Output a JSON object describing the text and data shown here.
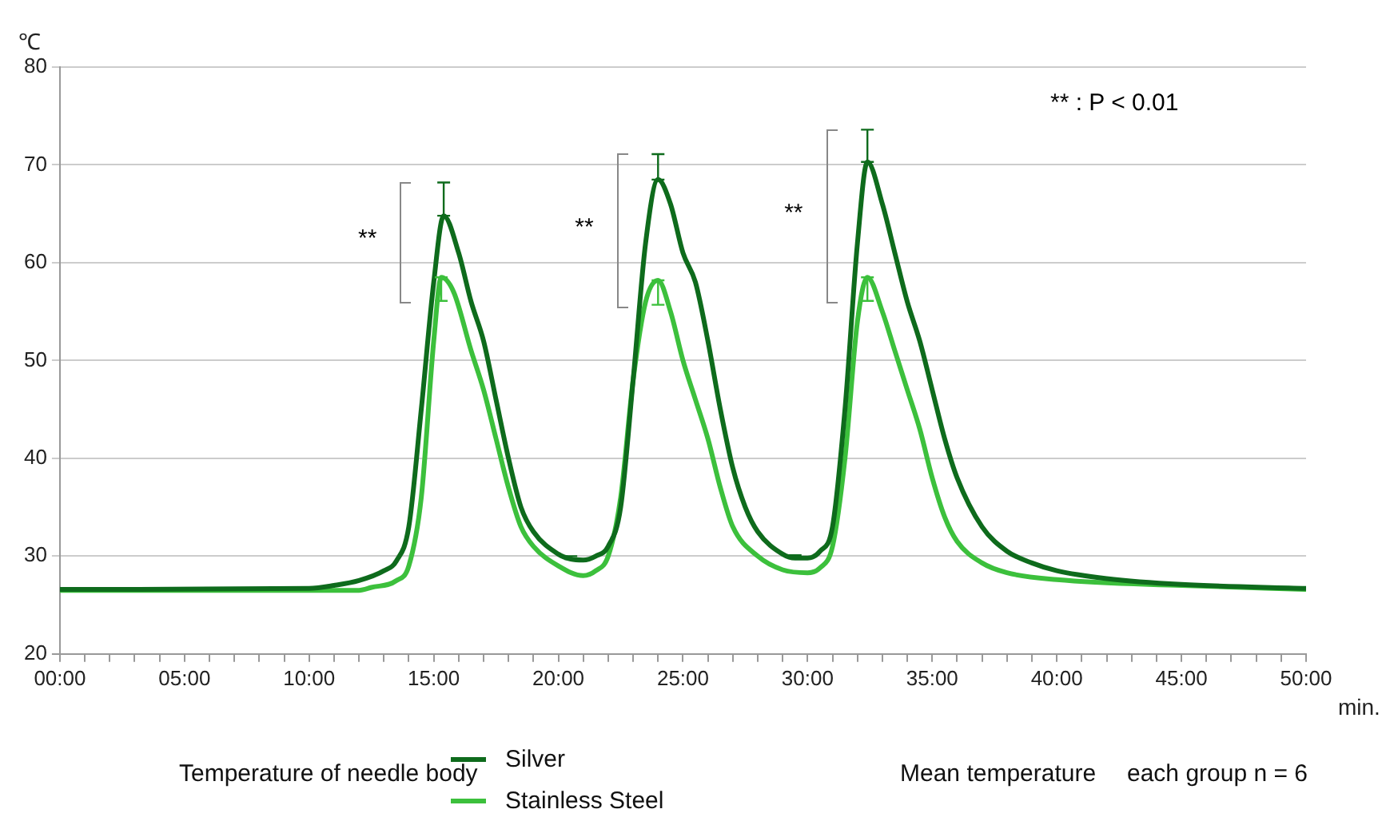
{
  "chart_data": {
    "type": "line",
    "ylabel": "℃",
    "xlabel": "min.",
    "xlim": [
      0,
      50
    ],
    "xticks": [
      {
        "value": 0,
        "label": "00:00"
      },
      {
        "value": 1,
        "label": null
      },
      {
        "value": 2,
        "label": null
      },
      {
        "value": 3,
        "label": null
      },
      {
        "value": 4,
        "label": null
      },
      {
        "value": 5,
        "label": "05:00"
      },
      {
        "value": 6,
        "label": null
      },
      {
        "value": 7,
        "label": null
      },
      {
        "value": 8,
        "label": null
      },
      {
        "value": 9,
        "label": null
      },
      {
        "value": 10,
        "label": "10:00"
      },
      {
        "value": 11,
        "label": null
      },
      {
        "value": 12,
        "label": null
      },
      {
        "value": 13,
        "label": null
      },
      {
        "value": 14,
        "label": null
      },
      {
        "value": 15,
        "label": "15:00"
      },
      {
        "value": 16,
        "label": null
      },
      {
        "value": 17,
        "label": null
      },
      {
        "value": 18,
        "label": null
      },
      {
        "value": 19,
        "label": null
      },
      {
        "value": 20,
        "label": "20:00"
      },
      {
        "value": 21,
        "label": null
      },
      {
        "value": 22,
        "label": null
      },
      {
        "value": 23,
        "label": null
      },
      {
        "value": 24,
        "label": null
      },
      {
        "value": 25,
        "label": "25:00"
      },
      {
        "value": 26,
        "label": null
      },
      {
        "value": 27,
        "label": null
      },
      {
        "value": 28,
        "label": null
      },
      {
        "value": 29,
        "label": null
      },
      {
        "value": 30,
        "label": "30:00"
      },
      {
        "value": 31,
        "label": null
      },
      {
        "value": 32,
        "label": null
      },
      {
        "value": 33,
        "label": null
      },
      {
        "value": 34,
        "label": null
      },
      {
        "value": 35,
        "label": "35:00"
      },
      {
        "value": 36,
        "label": null
      },
      {
        "value": 37,
        "label": null
      },
      {
        "value": 38,
        "label": null
      },
      {
        "value": 39,
        "label": null
      },
      {
        "value": 40,
        "label": "40:00"
      },
      {
        "value": 41,
        "label": null
      },
      {
        "value": 42,
        "label": null
      },
      {
        "value": 43,
        "label": null
      },
      {
        "value": 44,
        "label": null
      },
      {
        "value": 45,
        "label": "45:00"
      },
      {
        "value": 46,
        "label": null
      },
      {
        "value": 47,
        "label": null
      },
      {
        "value": 48,
        "label": null
      },
      {
        "value": 49,
        "label": null
      },
      {
        "value": 50,
        "label": "50:00"
      }
    ],
    "ylim": [
      20,
      80
    ],
    "yticks": [
      20,
      30,
      40,
      50,
      60,
      70,
      80
    ],
    "grid": "y",
    "legend": "bottom",
    "marker": "none",
    "line_style": "solid",
    "series": [
      {
        "name": "Silver",
        "color": "#0e6b1c",
        "x": [
          0,
          10,
          11,
          12,
          13,
          13.5,
          14,
          14.5,
          15,
          15.4,
          16,
          16.5,
          17,
          17.5,
          18,
          18.5,
          19,
          20,
          20.5,
          21,
          21.5,
          22,
          22.5,
          23,
          23.5,
          24,
          24.5,
          25,
          25.5,
          26,
          26.5,
          27,
          27.5,
          28,
          29,
          29.5,
          30,
          30.5,
          31,
          31.5,
          32,
          32.4,
          33,
          33.5,
          34,
          34.5,
          35,
          35.5,
          36,
          37,
          38,
          39,
          40,
          42,
          45,
          50
        ],
        "values": [
          26.6,
          26.7,
          27,
          27.5,
          28.5,
          29.5,
          33,
          45,
          58,
          64.8,
          61,
          56,
          52,
          46,
          40,
          35,
          32.5,
          30.2,
          29.7,
          29.6,
          30,
          31,
          35,
          48,
          62,
          68.5,
          66,
          61,
          58,
          52,
          45,
          39,
          35,
          32.5,
          30.2,
          29.8,
          29.8,
          30.5,
          33,
          45,
          62,
          70.3,
          66,
          61,
          56,
          52,
          47,
          42,
          38,
          33,
          30.5,
          29.3,
          28.5,
          27.7,
          27.1,
          26.7
        ],
        "errors": [
          null,
          null,
          null,
          null,
          null,
          null,
          null,
          null,
          null,
          [
            64.8,
            68.2
          ],
          null,
          null,
          null,
          null,
          null,
          null,
          null,
          null,
          [
            29.7,
            30
          ],
          null,
          null,
          null,
          null,
          null,
          null,
          [
            68.5,
            71.1
          ],
          null,
          null,
          null,
          null,
          null,
          null,
          null,
          null,
          null,
          [
            29.8,
            30.1
          ],
          null,
          null,
          null,
          null,
          null,
          [
            70.3,
            73.6
          ],
          null,
          null,
          null,
          null,
          null,
          null,
          null,
          null,
          null,
          null,
          null,
          null,
          null,
          null
        ]
      },
      {
        "name": "Stainless Steel",
        "color": "#3cc03c",
        "x": [
          0,
          12,
          12.5,
          13.5,
          14,
          14.5,
          15,
          15.3,
          15.8,
          16.5,
          17,
          17.5,
          18,
          18.5,
          19,
          20,
          21,
          21.5,
          22,
          22.5,
          23,
          23.5,
          24,
          24.5,
          25,
          25.5,
          26,
          26.5,
          27,
          28,
          29,
          30,
          30.5,
          31,
          31.5,
          32,
          32.4,
          33,
          33.5,
          34,
          34.5,
          35,
          35.5,
          36,
          37,
          38,
          40,
          45,
          50
        ],
        "values": [
          26.5,
          26.5,
          26.8,
          27.5,
          29,
          36,
          52,
          58.5,
          57,
          51,
          47,
          42,
          37,
          33,
          31,
          29,
          28,
          28.5,
          30,
          36,
          48,
          56,
          58.2,
          55,
          50,
          46,
          42,
          37,
          33,
          30,
          28.6,
          28.3,
          28.8,
          31,
          40,
          54,
          58.5,
          55,
          51,
          47,
          43,
          38,
          34,
          31.5,
          29.3,
          28.3,
          27.6,
          27,
          26.6
        ],
        "errors": [
          null,
          null,
          null,
          null,
          null,
          null,
          null,
          [
            56.1,
            58.5
          ],
          null,
          null,
          null,
          null,
          null,
          null,
          null,
          null,
          null,
          null,
          null,
          null,
          null,
          null,
          [
            55.7,
            58.2
          ],
          null,
          null,
          null,
          null,
          null,
          null,
          null,
          null,
          null,
          null,
          null,
          null,
          null,
          [
            56.1,
            58.5
          ],
          null,
          null,
          null,
          null,
          null,
          null,
          null,
          null,
          null,
          null,
          null,
          null
        ]
      }
    ],
    "annotations": [
      "Temperature of needle body",
      "Mean temperature",
      "each group n = 6",
      "** : P < 0.01",
      "**",
      "**",
      "**"
    ]
  }
}
